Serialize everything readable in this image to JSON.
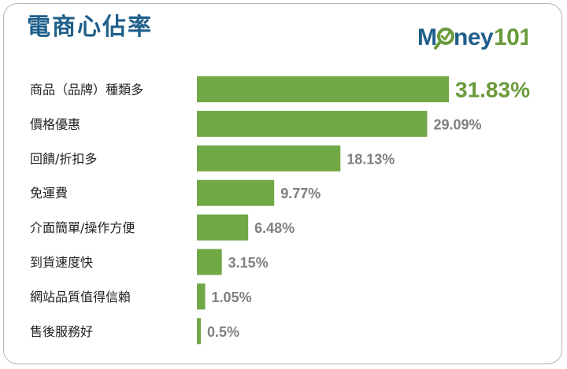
{
  "title": "電商心佔率",
  "logo": {
    "text_a": "M",
    "text_b": "ney",
    "text_c": "101",
    "icon": "magnifier-check-icon",
    "colors": {
      "m": "#1f5f8b",
      "ney": "#1f5f8b",
      "num": "#6a9a3a",
      "icon": "#6a9a3a"
    }
  },
  "chart_data": {
    "type": "bar",
    "orientation": "horizontal",
    "categories": [
      "商品（品牌）種類多",
      "價格優惠",
      "回饋/折扣多",
      "免運費",
      "介面簡單/操作方便",
      "到貨速度快",
      "網站品質值得信賴",
      "售後服務好"
    ],
    "values": [
      31.83,
      29.09,
      18.13,
      9.77,
      6.48,
      3.15,
      1.05,
      0.5
    ],
    "value_labels": [
      "31.83%",
      "29.09%",
      "18.13%",
      "9.77%",
      "6.48%",
      "3.15%",
      "1.05%",
      "0.5%"
    ],
    "xlim": [
      0,
      31.83
    ],
    "grid": false,
    "bar_color": "#70a846",
    "highlight_first_label_color": "#6a9a3a"
  }
}
